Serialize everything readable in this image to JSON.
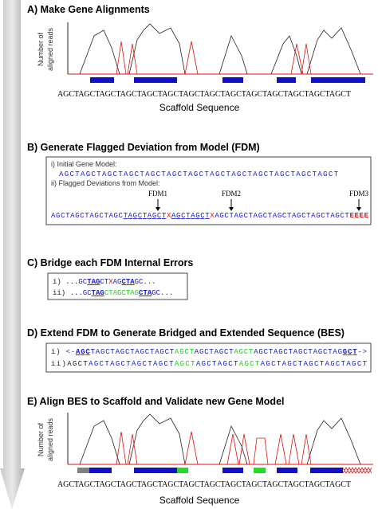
{
  "panel_a": {
    "title": "A) Make Gene Alignments",
    "y_label": [
      "Number of",
      "aligned reads"
    ],
    "sequence": "AGCTAGCTAGCTAGCTAGCTAGCTAGCTAGCTAGCTAGCTAGCTAGCTAGCTAGCT",
    "x_label": "Scaffold Sequence"
  },
  "panel_b": {
    "title": "B) Generate Flagged Deviation from Model (FDM)",
    "line1_label": "i) Initial Gene Model:",
    "line1": [
      {
        "text": "AGCTAGCTAGCTAGCTAGCTAGCTAGCTAGCTAGCTAGCTAGCTAGCTAGCT",
        "style": "blue"
      }
    ],
    "line2_label": "ii) Flagged Deviations from Model:",
    "flags": [
      "FDM1",
      "FDM2",
      "FDM3"
    ],
    "line2": [
      {
        "text": "AGCTAGCTAGCTAGC",
        "style": "blue"
      },
      {
        "text": "TAGCTAGCT",
        "style": "under"
      },
      {
        "text": "X",
        "style": "red"
      },
      {
        "text": "AGCTAGCT",
        "style": "under"
      },
      {
        "text": "X",
        "style": "red"
      },
      {
        "text": "AGCTAGCTAGCTAGCTAGCTAGCTAGCT",
        "style": "blue"
      },
      {
        "text": "EEEE",
        "style": "flag"
      }
    ]
  },
  "panel_c": {
    "title": "C) Bridge each FDM Internal Errors",
    "line1": [
      {
        "text": "i) ",
        "style": "black"
      },
      {
        "text": "...GC",
        "style": "blue"
      },
      {
        "text": "TAG",
        "style": "key"
      },
      {
        "text": "CT",
        "style": "blue"
      },
      {
        "text": "X",
        "style": "red"
      },
      {
        "text": "AG",
        "style": "blue"
      },
      {
        "text": "CTA",
        "style": "key"
      },
      {
        "text": "GC...",
        "style": "blue"
      }
    ],
    "line2": [
      {
        "text": "ii) ",
        "style": "black"
      },
      {
        "text": "...GC",
        "style": "blue"
      },
      {
        "text": "TAG",
        "style": "key"
      },
      {
        "text": "CTAGCTAG",
        "style": "green"
      },
      {
        "text": "CTA",
        "style": "key"
      },
      {
        "text": "GC...",
        "style": "blue"
      }
    ]
  },
  "panel_d": {
    "title": "D) Extend FDM to Generate Bridged and Extended Sequence (BES)",
    "line1": [
      {
        "text": "i)  ",
        "style": "black"
      },
      {
        "text": "<-",
        "style": "blue"
      },
      {
        "text": "AGC",
        "style": "key"
      },
      {
        "text": "TAGCTAGCTAGCTAGCT",
        "style": "blue"
      },
      {
        "text": "AGCT",
        "style": "green"
      },
      {
        "text": "AGCTAGCT",
        "style": "blue"
      },
      {
        "text": "AGCT",
        "style": "green"
      },
      {
        "text": "AGCTAGCTAGCTAGCTAG",
        "style": "blue"
      },
      {
        "text": "GCT",
        "style": "key"
      },
      {
        "text": "->",
        "style": "blue"
      }
    ],
    "line2": [
      {
        "text": "ii)",
        "style": "black"
      },
      {
        "text": "AGCT",
        "style": "black"
      },
      {
        "text": "AGCTAGCTAGCTAGCT",
        "style": "blue"
      },
      {
        "text": "AGCT",
        "style": "green"
      },
      {
        "text": "AGCTAGCT",
        "style": "blue"
      },
      {
        "text": "AGCT",
        "style": "green"
      },
      {
        "text": "AGCTAGCTAGCTAGCTAGCT",
        "style": "blue"
      }
    ]
  },
  "panel_e": {
    "title": "E) Align BES to Scaffold and Validate new Gene Model",
    "y_label": [
      "Number of",
      "aligned reads"
    ],
    "sequence": "AGCTAGCTAGCTAGCTAGCTAGCTAGCTAGCTAGCTAGCTAGCTAGCTAGCTAGCT",
    "x_label": "Scaffold Sequence"
  }
}
